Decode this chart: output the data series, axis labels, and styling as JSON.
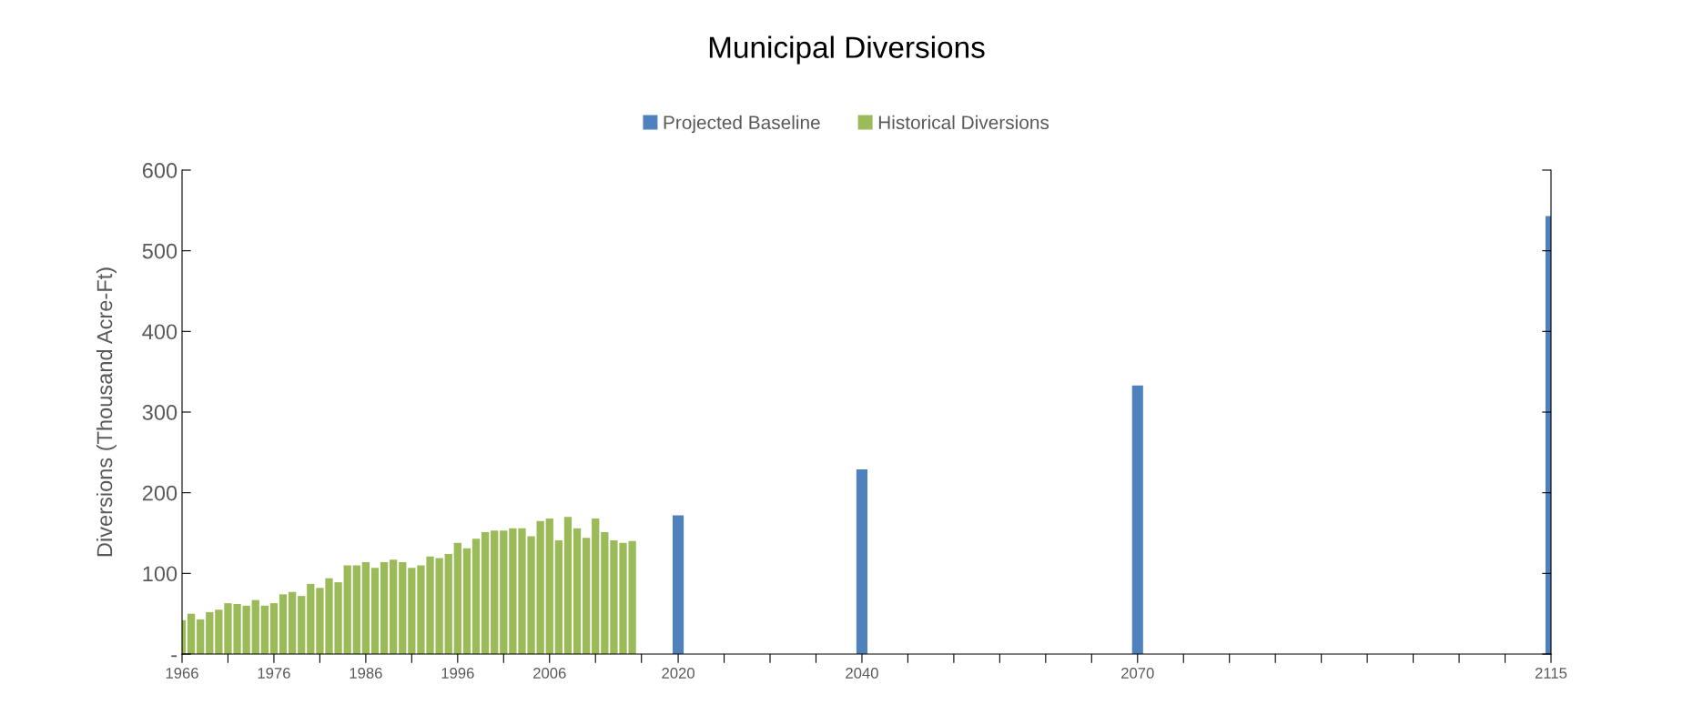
{
  "chart_data": {
    "type": "bar",
    "title": "Municipal Diversions",
    "ylabel": "Diversions (Thousand Acre-Ft)",
    "series": [
      {
        "name": "Projected Baseline",
        "color": "#4f81bd",
        "x": [
          2020,
          2040,
          2070,
          2115
        ],
        "values": [
          172,
          229,
          333,
          543
        ]
      },
      {
        "name": "Historical Diversions",
        "color": "#9bbb59",
        "x": [
          1966,
          1967,
          1968,
          1969,
          1970,
          1971,
          1972,
          1973,
          1974,
          1975,
          1976,
          1977,
          1978,
          1979,
          1980,
          1981,
          1982,
          1983,
          1984,
          1985,
          1986,
          1987,
          1988,
          1989,
          1990,
          1991,
          1992,
          1993,
          1994,
          1995,
          1996,
          1997,
          1998,
          1999,
          2000,
          2001,
          2002,
          2003,
          2004,
          2005,
          2006,
          2007,
          2008,
          2009,
          2010,
          2011,
          2012,
          2013,
          2014,
          2015
        ],
        "values": [
          42,
          50,
          43,
          52,
          55,
          63,
          62,
          60,
          67,
          60,
          63,
          74,
          77,
          72,
          87,
          82,
          94,
          89,
          110,
          110,
          114,
          107,
          114,
          117,
          114,
          107,
          110,
          121,
          119,
          124,
          138,
          131,
          143,
          151,
          153,
          153,
          156,
          156,
          146,
          165,
          168,
          141,
          170,
          156,
          144,
          168,
          151,
          141,
          138,
          140
        ]
      }
    ],
    "xlim": [
      1966,
      2115
    ],
    "xticks": [
      {
        "value": 1966,
        "label": "1966"
      },
      {
        "value": 1971,
        "label": null
      },
      {
        "value": 1976,
        "label": "1976"
      },
      {
        "value": 1981,
        "label": null
      },
      {
        "value": 1986,
        "label": "1986"
      },
      {
        "value": 1991,
        "label": null
      },
      {
        "value": 1996,
        "label": "1996"
      },
      {
        "value": 2001,
        "label": null
      },
      {
        "value": 2006,
        "label": "2006"
      },
      {
        "value": 2011,
        "label": null
      },
      {
        "value": 2016,
        "label": null
      },
      {
        "value": 2020,
        "label": "2020"
      },
      {
        "value": 2025,
        "label": null
      },
      {
        "value": 2030,
        "label": null
      },
      {
        "value": 2035,
        "label": null
      },
      {
        "value": 2040,
        "label": "2040"
      },
      {
        "value": 2045,
        "label": null
      },
      {
        "value": 2050,
        "label": null
      },
      {
        "value": 2055,
        "label": null
      },
      {
        "value": 2060,
        "label": null
      },
      {
        "value": 2065,
        "label": null
      },
      {
        "value": 2070,
        "label": "2070"
      },
      {
        "value": 2075,
        "label": null
      },
      {
        "value": 2080,
        "label": null
      },
      {
        "value": 2085,
        "label": null
      },
      {
        "value": 2090,
        "label": null
      },
      {
        "value": 2095,
        "label": null
      },
      {
        "value": 2100,
        "label": null
      },
      {
        "value": 2105,
        "label": null
      },
      {
        "value": 2110,
        "label": null
      },
      {
        "value": 2115,
        "label": "2115"
      }
    ],
    "ylim": [
      0,
      600
    ],
    "yticks": [
      {
        "value": 0,
        "label": "-"
      },
      100,
      200,
      300,
      400,
      500,
      600
    ],
    "grid": false,
    "legend": "top"
  }
}
